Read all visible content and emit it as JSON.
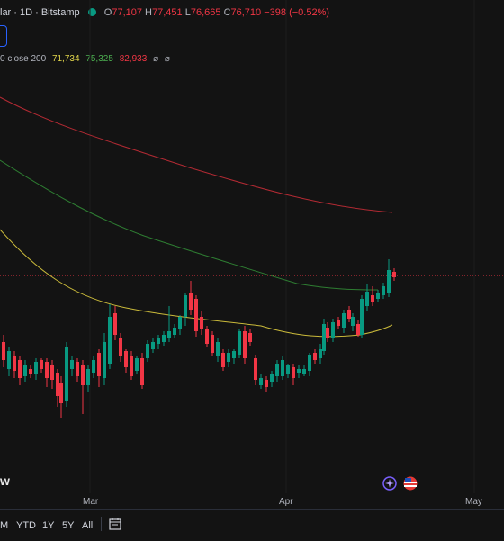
{
  "header": {
    "symbol": "lar · 1D · Bitstamp",
    "open_label": "O",
    "open": "77,107",
    "high_label": "H",
    "high": "77,451",
    "low_label": "L",
    "low": "76,665",
    "close_label": "C",
    "close": "76,710",
    "change": "−398 (−0.52%)"
  },
  "ma_legend": {
    "label": "0 close 200",
    "v1": "71,734",
    "v2": "75,325",
    "v3": "82,933",
    "eye1": "⌀",
    "eye2": "⌀"
  },
  "colors": {
    "up": "#089981",
    "down": "#f23645",
    "ma_short": "#e0d44a",
    "ma_mid": "#4caf50",
    "ma_long": "#f23645"
  },
  "x_axis": {
    "months": [
      "Mar",
      "Apr",
      "May"
    ]
  },
  "logo_text": "w",
  "range_buttons": [
    "M",
    "YTD",
    "1Y",
    "5Y",
    "All"
  ],
  "icons": {
    "calendar": "calendar-icon",
    "sparkle": "sparkle-icon",
    "flag": "us-flag-icon"
  }
}
